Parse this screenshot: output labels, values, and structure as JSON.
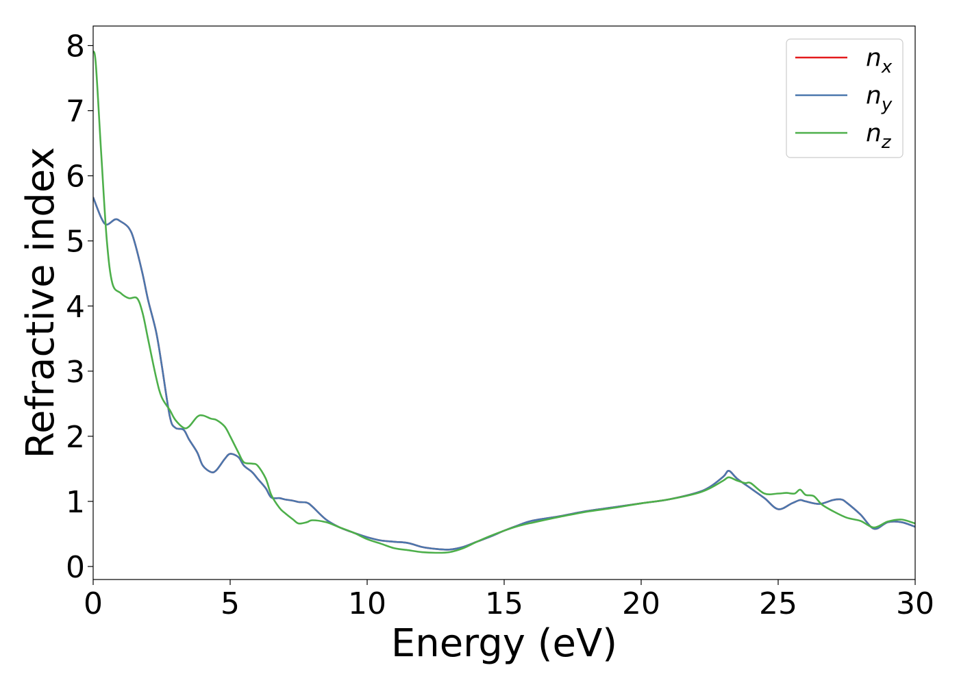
{
  "chart_data": {
    "type": "line",
    "title": "",
    "xlabel": "Energy (eV)",
    "ylabel": "Refractive index",
    "xlim": [
      0,
      30
    ],
    "ylim": [
      -0.2,
      8.3
    ],
    "xticks": [
      0,
      5,
      10,
      15,
      20,
      25,
      30
    ],
    "yticks": [
      0,
      1,
      2,
      3,
      4,
      5,
      6,
      7,
      8
    ],
    "grid": false,
    "legend_position": "top-right",
    "series": [
      {
        "name": "n",
        "subscript": "x",
        "color": "#e31a1c",
        "x": [
          0,
          0.3,
          0.5,
          0.8,
          1.0,
          1.3,
          1.5,
          1.8,
          2.0,
          2.3,
          2.5,
          2.8,
          3.0,
          3.3,
          3.5,
          3.8,
          4.0,
          4.3,
          4.5,
          4.8,
          5.0,
          5.3,
          5.5,
          5.8,
          6.0,
          6.3,
          6.5,
          6.8,
          7.0,
          7.3,
          7.5,
          7.8,
          8.0,
          8.5,
          9.0,
          9.5,
          10.0,
          10.5,
          11.0,
          11.5,
          12.0,
          12.5,
          13.0,
          13.5,
          14.0,
          14.5,
          15.0,
          15.5,
          16.0,
          17.0,
          18.0,
          19.0,
          20.0,
          21.0,
          22.0,
          22.5,
          23.0,
          23.2,
          23.5,
          24.0,
          24.5,
          25.0,
          25.5,
          25.8,
          26.0,
          26.5,
          27.0,
          27.3,
          27.5,
          28.0,
          28.5,
          29.0,
          29.5,
          30.0
        ],
        "y": [
          5.67,
          5.35,
          5.25,
          5.33,
          5.3,
          5.2,
          5.0,
          4.5,
          4.1,
          3.6,
          3.1,
          2.3,
          2.13,
          2.1,
          1.95,
          1.75,
          1.55,
          1.45,
          1.48,
          1.65,
          1.73,
          1.68,
          1.55,
          1.45,
          1.35,
          1.2,
          1.06,
          1.05,
          1.03,
          1.01,
          0.99,
          0.98,
          0.92,
          0.72,
          0.6,
          0.52,
          0.45,
          0.4,
          0.38,
          0.36,
          0.3,
          0.27,
          0.26,
          0.3,
          0.38,
          0.46,
          0.55,
          0.63,
          0.7,
          0.77,
          0.85,
          0.91,
          0.97,
          1.03,
          1.13,
          1.22,
          1.38,
          1.47,
          1.35,
          1.2,
          1.05,
          0.88,
          0.97,
          1.02,
          1.0,
          0.96,
          1.02,
          1.03,
          0.98,
          0.8,
          0.58,
          0.68,
          0.68,
          0.61
        ]
      },
      {
        "name": "n",
        "subscript": "y",
        "color": "#4a77ad",
        "x": [
          0,
          0.3,
          0.5,
          0.8,
          1.0,
          1.3,
          1.5,
          1.8,
          2.0,
          2.3,
          2.5,
          2.8,
          3.0,
          3.3,
          3.5,
          3.8,
          4.0,
          4.3,
          4.5,
          4.8,
          5.0,
          5.3,
          5.5,
          5.8,
          6.0,
          6.3,
          6.5,
          6.8,
          7.0,
          7.3,
          7.5,
          7.8,
          8.0,
          8.5,
          9.0,
          9.5,
          10.0,
          10.5,
          11.0,
          11.5,
          12.0,
          12.5,
          13.0,
          13.5,
          14.0,
          14.5,
          15.0,
          15.5,
          16.0,
          17.0,
          18.0,
          19.0,
          20.0,
          21.0,
          22.0,
          22.5,
          23.0,
          23.2,
          23.5,
          24.0,
          24.5,
          25.0,
          25.5,
          25.8,
          26.0,
          26.5,
          27.0,
          27.3,
          27.5,
          28.0,
          28.5,
          29.0,
          29.5,
          30.0
        ],
        "y": [
          5.67,
          5.35,
          5.25,
          5.33,
          5.3,
          5.2,
          5.0,
          4.5,
          4.1,
          3.6,
          3.1,
          2.3,
          2.13,
          2.1,
          1.95,
          1.75,
          1.55,
          1.45,
          1.48,
          1.65,
          1.73,
          1.68,
          1.55,
          1.45,
          1.35,
          1.2,
          1.06,
          1.05,
          1.03,
          1.01,
          0.99,
          0.98,
          0.92,
          0.72,
          0.6,
          0.52,
          0.45,
          0.4,
          0.38,
          0.36,
          0.3,
          0.27,
          0.26,
          0.3,
          0.38,
          0.46,
          0.55,
          0.63,
          0.7,
          0.77,
          0.85,
          0.91,
          0.97,
          1.03,
          1.13,
          1.22,
          1.38,
          1.47,
          1.35,
          1.2,
          1.05,
          0.88,
          0.97,
          1.02,
          1.0,
          0.96,
          1.02,
          1.03,
          0.98,
          0.8,
          0.58,
          0.68,
          0.68,
          0.61
        ]
      },
      {
        "name": "n",
        "subscript": "z",
        "color": "#4daf4a",
        "x": [
          0,
          0.1,
          0.3,
          0.5,
          0.7,
          1.0,
          1.3,
          1.6,
          1.8,
          2.0,
          2.3,
          2.5,
          2.8,
          3.0,
          3.3,
          3.5,
          3.8,
          4.0,
          4.3,
          4.5,
          4.8,
          5.0,
          5.3,
          5.5,
          5.8,
          6.0,
          6.3,
          6.5,
          6.8,
          7.0,
          7.3,
          7.5,
          7.8,
          8.0,
          8.5,
          9.0,
          9.5,
          10.0,
          10.5,
          11.0,
          11.5,
          12.0,
          12.5,
          13.0,
          13.5,
          14.0,
          14.5,
          15.0,
          15.5,
          16.0,
          17.0,
          18.0,
          19.0,
          20.0,
          21.0,
          22.0,
          22.5,
          23.0,
          23.2,
          23.5,
          23.8,
          24.0,
          24.5,
          25.0,
          25.3,
          25.6,
          25.8,
          26.0,
          26.3,
          26.6,
          27.0,
          27.5,
          28.0,
          28.5,
          29.0,
          29.5,
          30.0
        ],
        "y": [
          7.92,
          7.7,
          6.3,
          5.0,
          4.35,
          4.2,
          4.12,
          4.12,
          3.9,
          3.5,
          2.9,
          2.6,
          2.4,
          2.25,
          2.13,
          2.15,
          2.3,
          2.32,
          2.27,
          2.25,
          2.15,
          2.0,
          1.75,
          1.6,
          1.58,
          1.55,
          1.35,
          1.1,
          0.9,
          0.82,
          0.72,
          0.66,
          0.68,
          0.71,
          0.68,
          0.6,
          0.52,
          0.42,
          0.35,
          0.28,
          0.25,
          0.22,
          0.21,
          0.22,
          0.28,
          0.38,
          0.47,
          0.55,
          0.62,
          0.67,
          0.76,
          0.84,
          0.9,
          0.97,
          1.03,
          1.12,
          1.2,
          1.32,
          1.37,
          1.32,
          1.28,
          1.28,
          1.12,
          1.12,
          1.13,
          1.12,
          1.18,
          1.1,
          1.08,
          0.95,
          0.85,
          0.75,
          0.7,
          0.6,
          0.69,
          0.72,
          0.66
        ]
      }
    ]
  }
}
